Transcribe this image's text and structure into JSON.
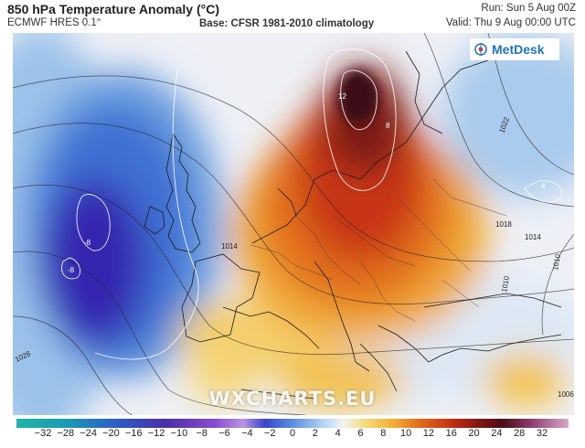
{
  "header": {
    "title": "850 hPa Temperature Anomaly (°C)",
    "model": "ECMWF HRES 0.1°",
    "base": "Base: CFSR 1981-2010 climatology",
    "run": "Run: Sun 5 Aug 00Z",
    "valid": "Valid: Thu 9 Aug 00:00 UTC"
  },
  "brand": "MetDesk",
  "watermark": "WXCHARTS.EU",
  "colorbar": {
    "ticks": [
      "−32",
      "−28",
      "−24",
      "−20",
      "−16",
      "−12",
      "−10",
      "−8",
      "−6",
      "−4",
      "−2",
      "0",
      "2",
      "4",
      "6",
      "8",
      "10",
      "12",
      "16",
      "20",
      "24",
      "28",
      "32"
    ]
  },
  "map_labels": {
    "anomaly_max": "12",
    "anomaly_8": "8",
    "anomaly_cold_a": "-8",
    "anomaly_cold_b": "-8",
    "anomaly_4_west": "4",
    "pressure_1022": "1022",
    "pressure_1018": "1018",
    "pressure_1014_east": "1014",
    "pressure_1014_central": "1014",
    "pressure_1010": "1010",
    "pressure_1010_b": "1010",
    "pressure_1026": "1026",
    "pressure_1006": "1006"
  },
  "colors": {
    "deep_cold": "#3d2ea6",
    "cold": "#2f5fd0",
    "cool": "#7fb2e6",
    "neutral": "#f2f4f8",
    "warm": "#f5c04a",
    "hot": "#e06a1c",
    "very_hot": "#b42210",
    "extreme": "#4a0a10"
  }
}
